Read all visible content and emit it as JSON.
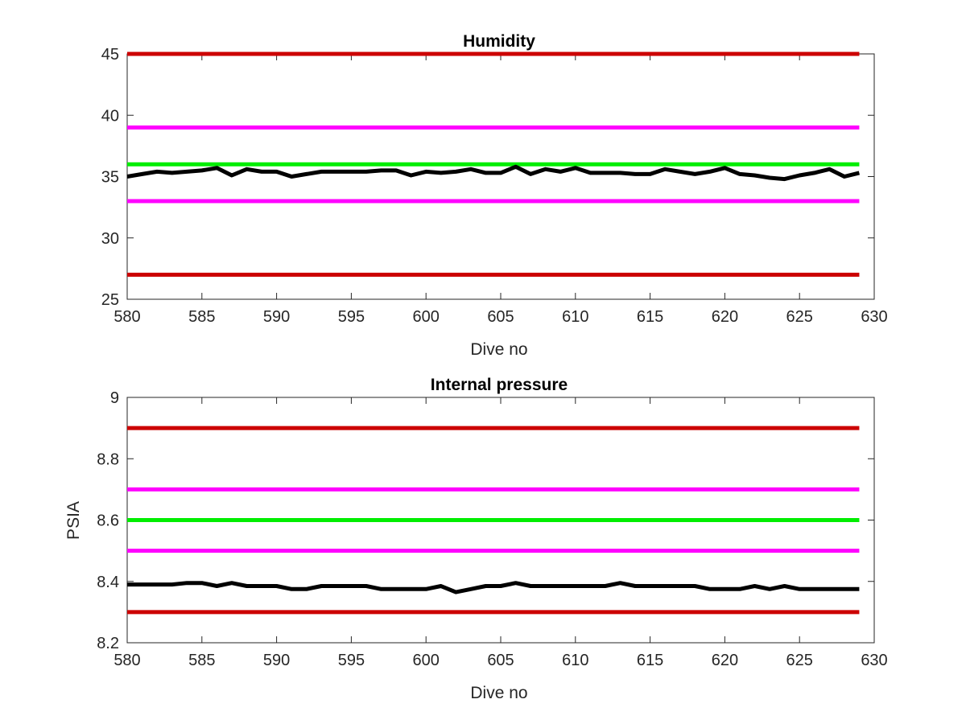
{
  "chart_data": [
    {
      "type": "line",
      "title": "Humidity",
      "xlabel": "Dive no",
      "ylabel": "",
      "xlim": [
        580,
        630
      ],
      "ylim": [
        25,
        45
      ],
      "xticks": [
        580,
        585,
        590,
        595,
        600,
        605,
        610,
        615,
        620,
        625,
        630
      ],
      "yticks": [
        25,
        30,
        35,
        40,
        45
      ],
      "grid": false,
      "thresholds": [
        {
          "value": 45,
          "color": "#cc0000"
        },
        {
          "value": 39,
          "color": "#ff00ff"
        },
        {
          "value": 36,
          "color": "#00ee00"
        },
        {
          "value": 33,
          "color": "#ff00ff"
        },
        {
          "value": 27,
          "color": "#cc0000"
        }
      ],
      "series": [
        {
          "color": "#000000",
          "x": [
            580,
            581,
            582,
            583,
            584,
            585,
            586,
            587,
            588,
            589,
            590,
            591,
            592,
            593,
            594,
            595,
            596,
            597,
            598,
            599,
            600,
            601,
            602,
            603,
            604,
            605,
            606,
            607,
            608,
            609,
            610,
            611,
            612,
            613,
            614,
            615,
            616,
            617,
            618,
            619,
            620,
            621,
            622,
            623,
            624,
            625,
            626,
            627,
            628,
            629
          ],
          "y": [
            35.0,
            35.2,
            35.4,
            35.3,
            35.4,
            35.5,
            35.7,
            35.1,
            35.6,
            35.4,
            35.4,
            35.0,
            35.2,
            35.4,
            35.4,
            35.4,
            35.4,
            35.5,
            35.5,
            35.1,
            35.4,
            35.3,
            35.4,
            35.6,
            35.3,
            35.3,
            35.8,
            35.2,
            35.6,
            35.4,
            35.7,
            35.3,
            35.3,
            35.3,
            35.2,
            35.2,
            35.6,
            35.4,
            35.2,
            35.4,
            35.7,
            35.2,
            35.1,
            34.9,
            34.8,
            35.1,
            35.3,
            35.6,
            35.0,
            35.3
          ]
        }
      ]
    },
    {
      "type": "line",
      "title": "Internal pressure",
      "xlabel": "Dive no",
      "ylabel": "PSIA",
      "xlim": [
        580,
        630
      ],
      "ylim": [
        8.2,
        9
      ],
      "xticks": [
        580,
        585,
        590,
        595,
        600,
        605,
        610,
        615,
        620,
        625,
        630
      ],
      "yticks": [
        8.2,
        8.4,
        8.6,
        8.8,
        9
      ],
      "grid": false,
      "thresholds": [
        {
          "value": 8.9,
          "color": "#cc0000"
        },
        {
          "value": 8.7,
          "color": "#ff00ff"
        },
        {
          "value": 8.6,
          "color": "#00ee00"
        },
        {
          "value": 8.5,
          "color": "#ff00ff"
        },
        {
          "value": 8.3,
          "color": "#cc0000"
        }
      ],
      "series": [
        {
          "color": "#000000",
          "x": [
            580,
            581,
            582,
            583,
            584,
            585,
            586,
            587,
            588,
            589,
            590,
            591,
            592,
            593,
            594,
            595,
            596,
            597,
            598,
            599,
            600,
            601,
            602,
            603,
            604,
            605,
            606,
            607,
            608,
            609,
            610,
            611,
            612,
            613,
            614,
            615,
            616,
            617,
            618,
            619,
            620,
            621,
            622,
            623,
            624,
            625,
            626,
            627,
            628,
            629
          ],
          "y": [
            8.39,
            8.39,
            8.39,
            8.39,
            8.395,
            8.395,
            8.385,
            8.395,
            8.385,
            8.385,
            8.385,
            8.375,
            8.375,
            8.385,
            8.385,
            8.385,
            8.385,
            8.375,
            8.375,
            8.375,
            8.375,
            8.385,
            8.365,
            8.375,
            8.385,
            8.385,
            8.395,
            8.385,
            8.385,
            8.385,
            8.385,
            8.385,
            8.385,
            8.395,
            8.385,
            8.385,
            8.385,
            8.385,
            8.385,
            8.375,
            8.375,
            8.375,
            8.385,
            8.375,
            8.385,
            8.375,
            8.375,
            8.375,
            8.375,
            8.375
          ]
        }
      ]
    }
  ]
}
